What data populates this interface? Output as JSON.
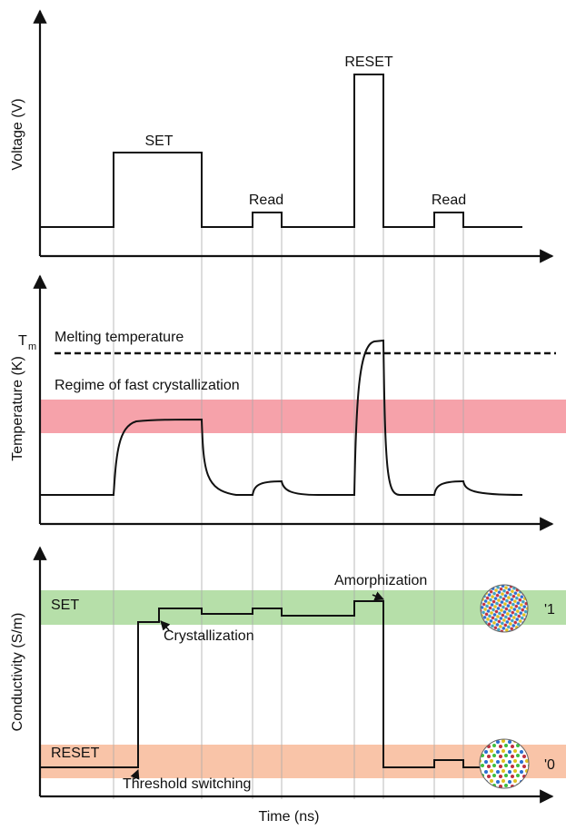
{
  "voltage_panel": {
    "axis_label": "Voltage (V)",
    "pulses": [
      "SET",
      "Read",
      "RESET",
      "Read"
    ]
  },
  "temperature_panel": {
    "axis_label": "Temperature (K)",
    "tm_symbol": "T",
    "tm_subscript": "m",
    "melting_label": "Melting temperature",
    "regime_label": "Regime of fast crystallization"
  },
  "conductivity_panel": {
    "axis_label": "Conductivity (S/m)",
    "set_band": "SET",
    "reset_band": "RESET",
    "amorphization": "Amorphization",
    "crystallization": "Crystallization",
    "threshold": "Threshold switching",
    "state_1": "'1",
    "state_0": "'0"
  },
  "x_axis_label": "Time (ns)"
}
